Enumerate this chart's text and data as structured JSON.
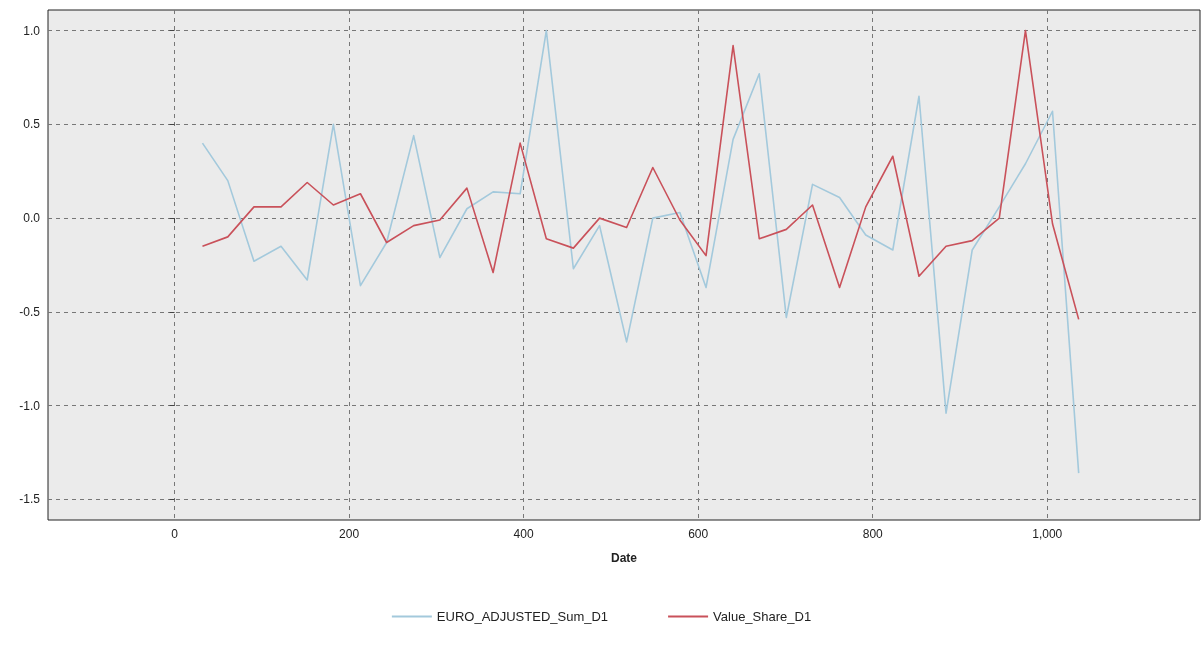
{
  "chart_data": {
    "type": "line",
    "xlabel": "Date",
    "x": [
      32,
      61,
      91,
      122,
      152,
      182,
      213,
      243,
      274,
      304,
      335,
      365,
      396,
      426,
      457,
      487,
      518,
      548,
      579,
      609,
      640,
      670,
      701,
      731,
      762,
      792,
      823,
      853,
      884,
      914,
      945,
      975,
      1006,
      1036
    ],
    "series": [
      {
        "name": "EURO_ADJUSTED_Sum_D1",
        "color": "#a3c9dc",
        "values": [
          0.4,
          0.2,
          -0.23,
          -0.15,
          -0.33,
          0.5,
          -0.36,
          -0.13,
          0.44,
          -0.21,
          0.05,
          0.14,
          0.13,
          1.0,
          -0.27,
          -0.04,
          -0.66,
          0.0,
          0.03,
          -0.37,
          0.42,
          0.77,
          -0.53,
          0.18,
          0.11,
          -0.09,
          -0.17,
          0.65,
          -1.04,
          -0.17,
          0.06,
          0.29,
          0.57,
          -1.36
        ]
      },
      {
        "name": "Value_Share_D1",
        "color": "#c9515a",
        "values": [
          -0.15,
          -0.1,
          0.06,
          0.06,
          0.19,
          0.07,
          0.13,
          -0.13,
          -0.04,
          -0.01,
          0.16,
          -0.29,
          0.4,
          -0.11,
          -0.16,
          0.0,
          -0.05,
          0.27,
          -0.01,
          -0.2,
          0.92,
          -0.11,
          -0.06,
          0.07,
          -0.37,
          0.06,
          0.33,
          -0.31,
          -0.15,
          -0.12,
          0.0,
          1.0,
          -0.03,
          -0.54
        ]
      }
    ],
    "xlim": [
      -145,
      1175
    ],
    "ylim": [
      -1.61,
      1.11
    ],
    "xticks": [
      0,
      200,
      400,
      600,
      800,
      {
        "value": 1000,
        "label": "1,000"
      }
    ],
    "yticks": [
      {
        "value": -1.5,
        "label": "-1.5"
      },
      {
        "value": -1,
        "label": "-1.0"
      },
      {
        "value": -0.5,
        "label": "-0.5"
      },
      {
        "value": 0,
        "label": "0.0"
      },
      {
        "value": 0.5,
        "label": "0.5"
      },
      {
        "value": 1,
        "label": "1.0"
      }
    ],
    "grid": true,
    "legend": "bottom",
    "marker": "none",
    "line_style": "solid"
  }
}
